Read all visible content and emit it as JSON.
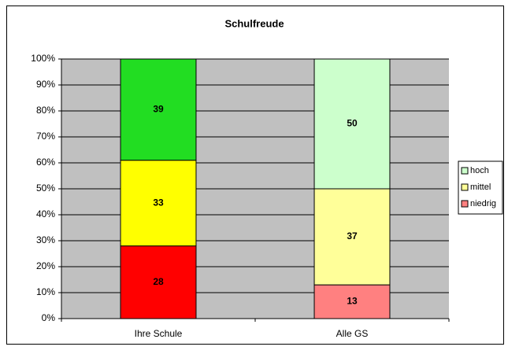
{
  "chart_data": {
    "type": "stacked_bar",
    "title": "Schulfreude",
    "categories": [
      "Ihre Schule",
      "Alle GS"
    ],
    "series": [
      {
        "name": "niedrig",
        "color": "#ff8080",
        "colors": [
          "#ff0000",
          "#ff8080"
        ],
        "values": [
          28,
          13
        ]
      },
      {
        "name": "mittel",
        "color": "#ffff99",
        "colors": [
          "#ffff00",
          "#ffff99"
        ],
        "values": [
          33,
          37
        ]
      },
      {
        "name": "hoch",
        "color": "#ccffcc",
        "colors": [
          "#22dd22",
          "#ccffcc"
        ],
        "values": [
          39,
          50
        ]
      }
    ],
    "ylim": [
      0,
      100
    ],
    "yticks": [
      {
        "value": 0,
        "label": "0%"
      },
      {
        "value": 10,
        "label": "10%"
      },
      {
        "value": 20,
        "label": "20%"
      },
      {
        "value": 30,
        "label": "30%"
      },
      {
        "value": 40,
        "label": "40%"
      },
      {
        "value": 50,
        "label": "50%"
      },
      {
        "value": 60,
        "label": "60%"
      },
      {
        "value": 70,
        "label": "70%"
      },
      {
        "value": 80,
        "label": "80%"
      },
      {
        "value": 90,
        "label": "90%"
      },
      {
        "value": 100,
        "label": "100%"
      }
    ],
    "grid": true,
    "plot_background": "#c0c0c0",
    "legend": "right"
  }
}
